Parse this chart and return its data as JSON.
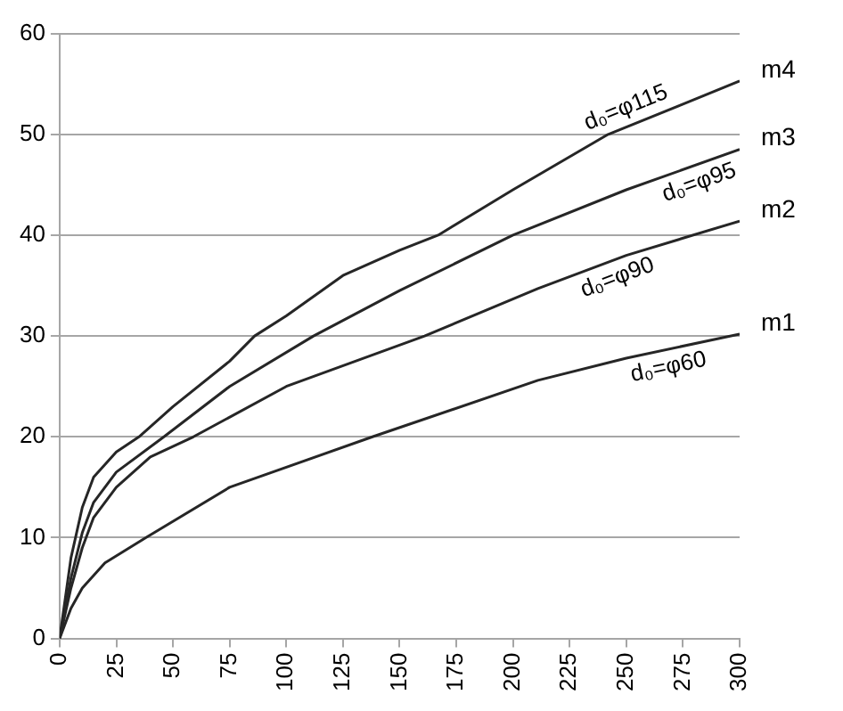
{
  "chart_data": {
    "type": "line",
    "xlim": [
      0,
      300
    ],
    "xticks": [
      0,
      25,
      50,
      75,
      100,
      125,
      150,
      175,
      200,
      225,
      250,
      275,
      300
    ],
    "ylim": [
      0,
      60
    ],
    "yticks": [
      0,
      10,
      20,
      30,
      40,
      50,
      60
    ],
    "grid": "y",
    "marker": "none",
    "line_style": "solid",
    "series": [
      {
        "name": "m1",
        "color": "#262626",
        "x": [
          0,
          5,
          10,
          20,
          38,
          75,
          138,
          211,
          250,
          300
        ],
        "values": [
          0,
          3,
          5,
          7.5,
          10,
          15,
          20,
          25.6,
          27.8,
          30.2
        ]
      },
      {
        "name": "m2",
        "color": "#262626",
        "x": [
          0,
          5,
          10,
          15,
          25,
          40,
          59,
          100,
          161,
          211,
          250,
          300
        ],
        "values": [
          0,
          5,
          9,
          12,
          15,
          18,
          20,
          25,
          30,
          34.7,
          38,
          41.4
        ]
      },
      {
        "name": "m3",
        "color": "#262626",
        "x": [
          0,
          5,
          10,
          15,
          25,
          46,
          75,
          112,
          150,
          200,
          250,
          300
        ],
        "values": [
          0,
          6,
          10.5,
          13.5,
          16.5,
          20,
          25,
          30,
          34.5,
          40,
          44.5,
          48.5
        ]
      },
      {
        "name": "m4",
        "color": "#262626",
        "x": [
          0,
          5,
          10,
          15,
          25,
          35,
          50,
          75,
          86,
          100,
          125,
          150,
          167,
          200,
          242,
          275,
          300
        ],
        "values": [
          0,
          8,
          13,
          16,
          18.5,
          20,
          23,
          27.5,
          30,
          32,
          36,
          38.5,
          40,
          44.5,
          50,
          53,
          55.3
        ]
      }
    ],
    "annotations": [
      "d₀=φ60",
      "d₀=φ90",
      "d₀=φ95",
      "d₀=φ115"
    ]
  }
}
